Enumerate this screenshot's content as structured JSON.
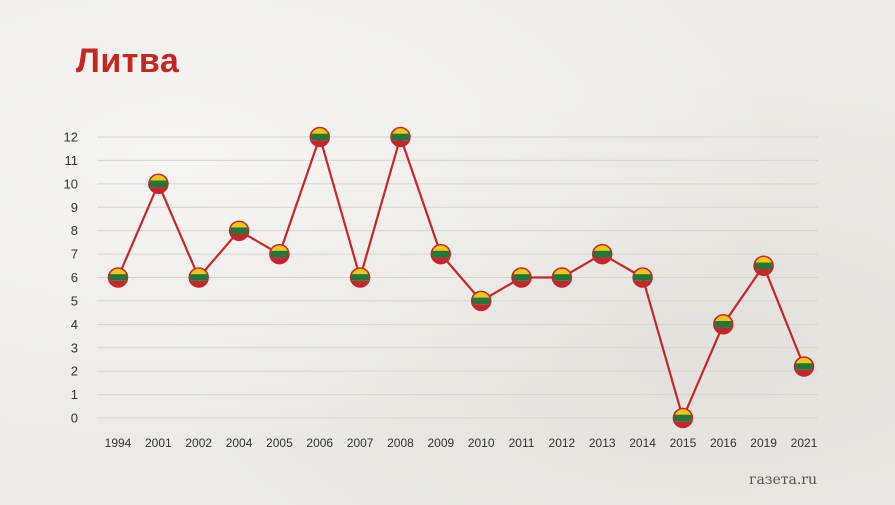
{
  "title": "Литва",
  "brand": "газета.ru",
  "colors": {
    "line": "#c9262a",
    "title": "#c5261f",
    "flag_yellow": "#f5c518",
    "flag_green": "#1f7a3a",
    "flag_red": "#c1272d",
    "grid": "#d6d4cf"
  },
  "chart_data": {
    "type": "line",
    "categories": [
      "1994",
      "2001",
      "2002",
      "2004",
      "2005",
      "2006",
      "2007",
      "2008",
      "2009",
      "2010",
      "2011",
      "2012",
      "2013",
      "2014",
      "2015",
      "2016",
      "2019",
      "2021"
    ],
    "values": [
      6,
      10,
      6,
      8,
      7,
      12,
      6,
      12,
      7,
      5,
      6,
      6,
      7,
      6,
      0,
      4,
      6.5,
      2.2
    ],
    "yticks": [
      0,
      1,
      2,
      3,
      4,
      5,
      6,
      7,
      8,
      9,
      10,
      11,
      12
    ],
    "ylim": [
      0,
      12
    ],
    "grid": true,
    "marker": "lithuania-flag"
  }
}
